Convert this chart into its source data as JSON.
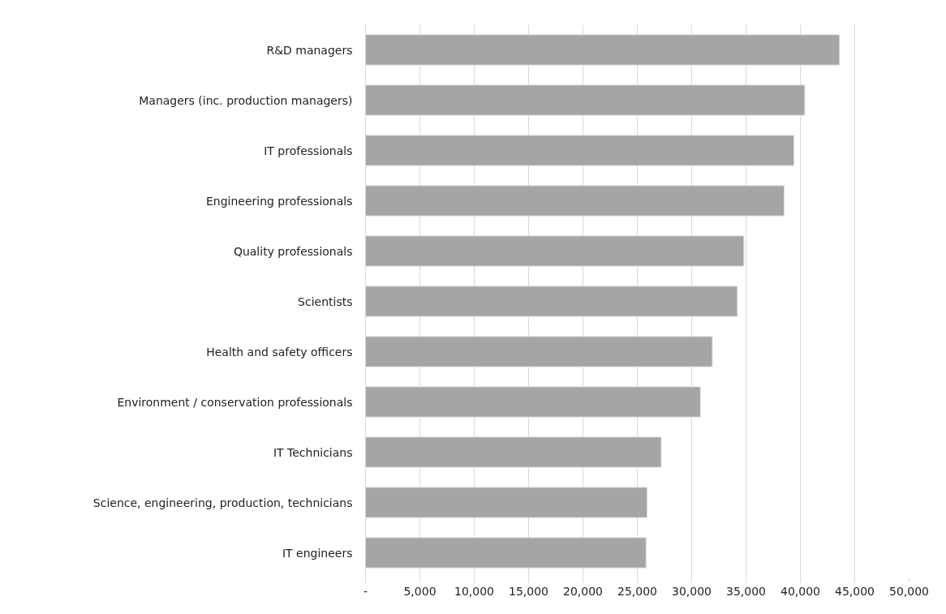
{
  "chart_data": {
    "type": "bar",
    "orientation": "horizontal",
    "categories": [
      "R&D managers",
      "Managers (inc. production managers)",
      "IT professionals",
      "Engineering professionals",
      "Quality professionals",
      "Scientists",
      "Health and safety officers",
      "Environment / conservation professionals",
      "IT Technicians",
      "Science, engineering, production, technicians",
      "IT engineers"
    ],
    "values": [
      43600,
      40400,
      39400,
      38500,
      34800,
      34200,
      31900,
      30800,
      27200,
      25900,
      25800
    ],
    "color": "#a5a5a5",
    "xlim": [
      0,
      50000
    ],
    "xticks": [
      {
        "value": 0,
        "label": "-"
      },
      {
        "value": 5000,
        "label": "5,000"
      },
      {
        "value": 10000,
        "label": "10,000"
      },
      {
        "value": 15000,
        "label": "15,000"
      },
      {
        "value": 20000,
        "label": "20,000"
      },
      {
        "value": 25000,
        "label": "25,000"
      },
      {
        "value": 30000,
        "label": "30,000"
      },
      {
        "value": 35000,
        "label": "35,000"
      },
      {
        "value": 40000,
        "label": "40,000"
      },
      {
        "value": 45000,
        "label": "45,000"
      },
      {
        "value": 50000,
        "label": "50,000"
      }
    ],
    "grid": "x"
  }
}
